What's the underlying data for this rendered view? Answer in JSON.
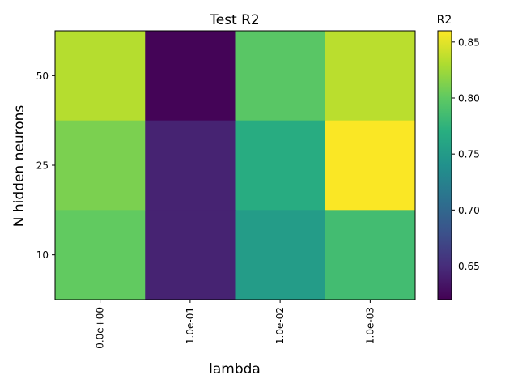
{
  "chart_data": {
    "type": "heatmap",
    "title": "Test R2",
    "xlabel": "lambda",
    "ylabel": "N hidden neurons",
    "x_categories": [
      "0.0e+00",
      "1.0e-01",
      "1.0e-02",
      "1.0e-03"
    ],
    "y_categories_top_to_bottom": [
      "50",
      "25",
      "10"
    ],
    "values_top_to_bottom": [
      [
        0.833,
        0.622,
        0.797,
        0.835
      ],
      [
        0.811,
        0.643,
        0.768,
        0.859
      ],
      [
        0.801,
        0.643,
        0.751,
        0.785
      ]
    ],
    "colorbar": {
      "label": "R2",
      "range": [
        0.62,
        0.86
      ],
      "ticks": [
        "0.65",
        "0.70",
        "0.75",
        "0.80",
        "0.85"
      ],
      "tick_values": [
        0.65,
        0.7,
        0.75,
        0.8,
        0.85
      ],
      "colormap": "viridis"
    },
    "grid": false
  }
}
